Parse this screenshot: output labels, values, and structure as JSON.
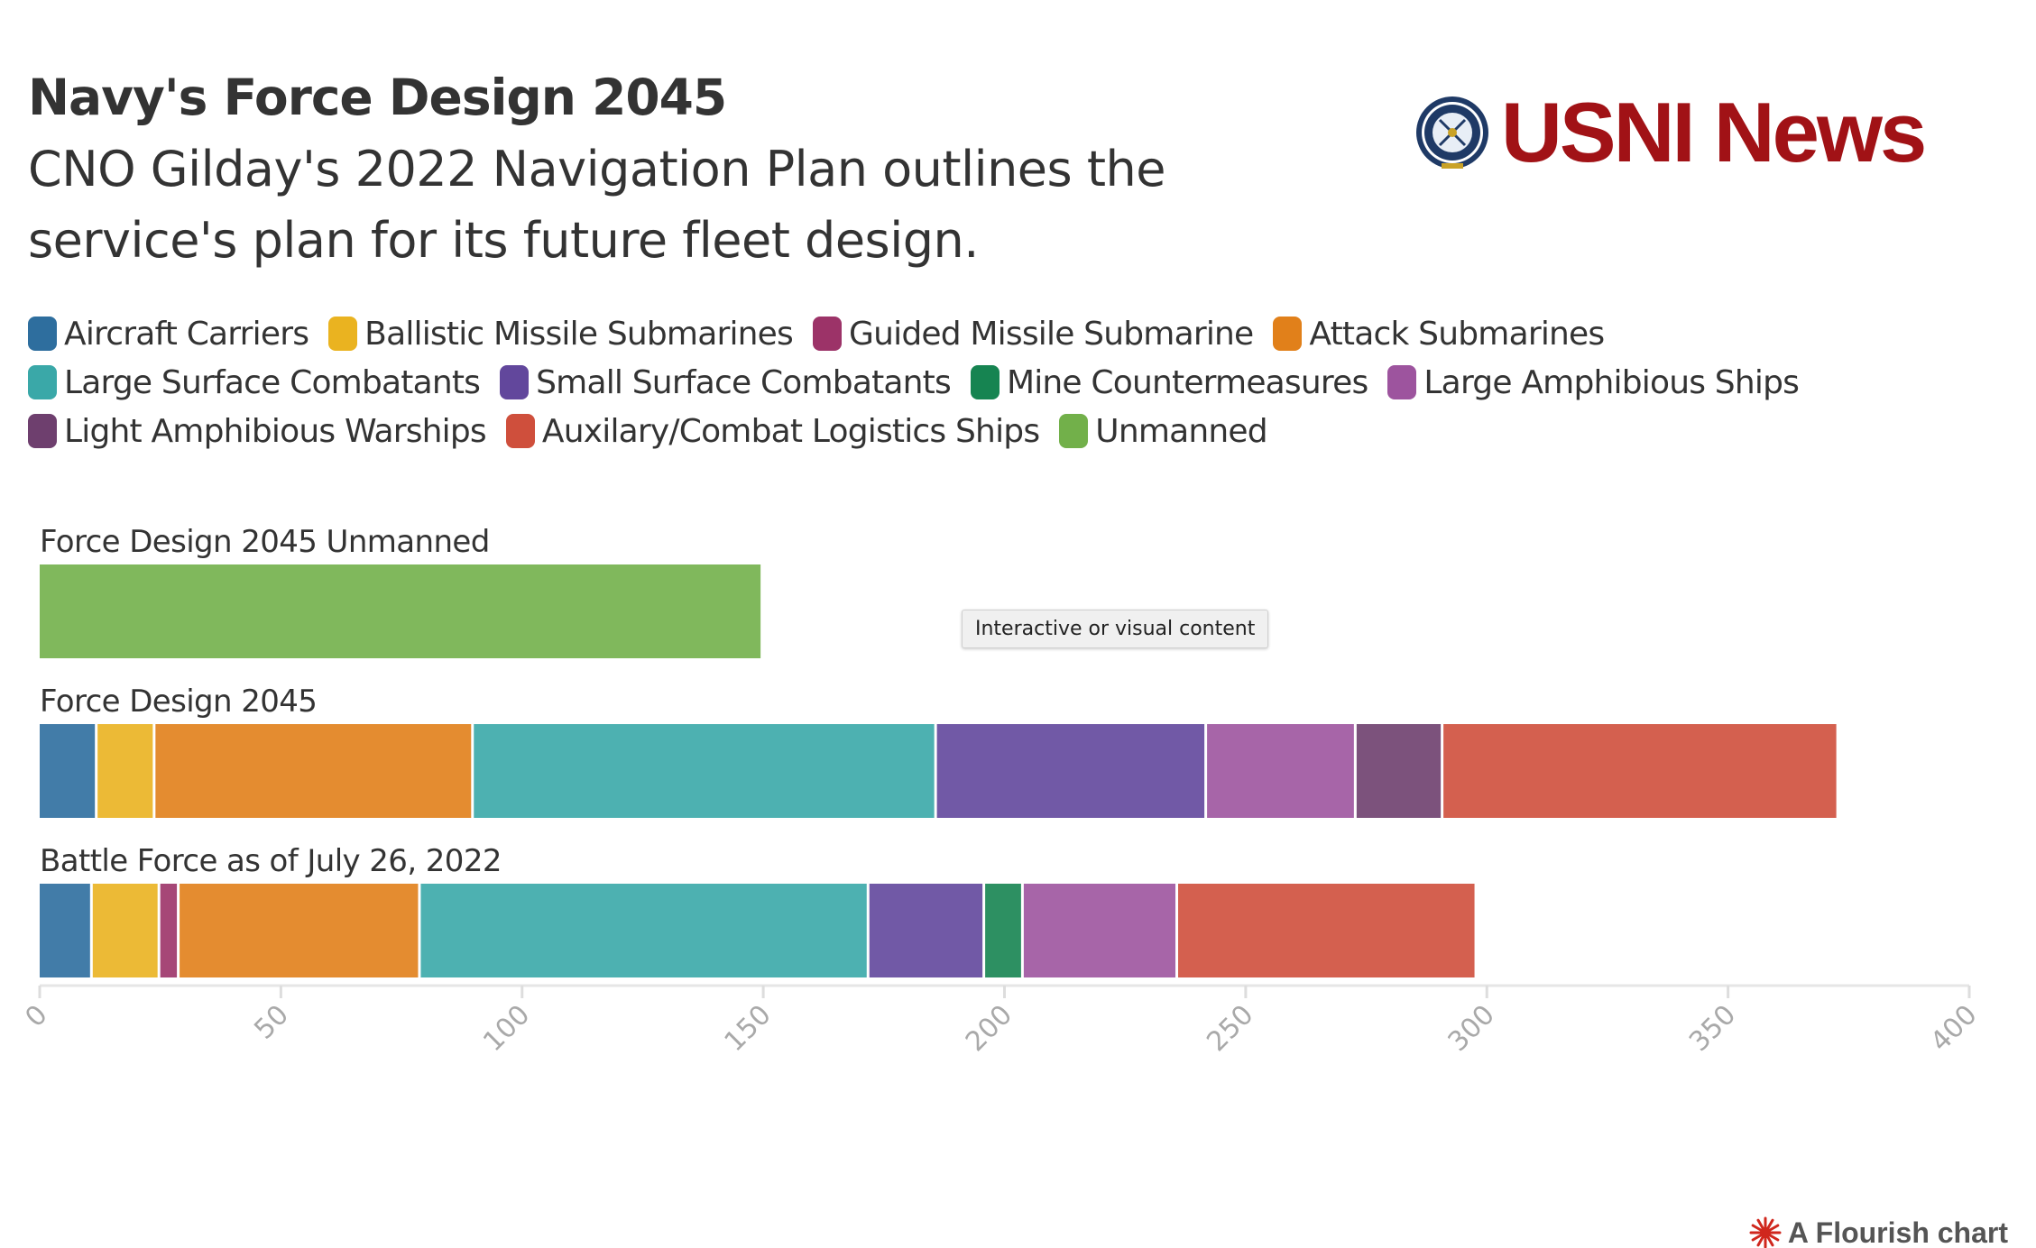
{
  "header": {
    "title": "Navy's Force Design 2045",
    "subtitle": "CNO Gilday's 2022 Navigation Plan outlines the service's plan for its future fleet design."
  },
  "logo": {
    "text": "USNI News",
    "seal_text": "U.S. NAVAL INSTITUTE",
    "brand_color": "#a11216"
  },
  "tooltip": {
    "text": "Interactive or visual content"
  },
  "credit": {
    "text": "A Flourish chart",
    "icon": "flourish-burst-icon"
  },
  "chart_data": {
    "type": "bar",
    "orientation": "horizontal",
    "stacked": true,
    "categories": [
      "Force Design 2045 Unmanned",
      "Force Design 2045",
      "Battle Force as of July 26, 2022"
    ],
    "series": [
      {
        "name": "Aircraft Carriers",
        "color": "#2e6e9e",
        "values": [
          0,
          12,
          11
        ]
      },
      {
        "name": "Ballistic Missile Submarines",
        "color": "#eab320",
        "values": [
          0,
          12,
          14
        ]
      },
      {
        "name": "Guided Missile Submarine",
        "color": "#9c3368",
        "values": [
          0,
          0,
          4
        ]
      },
      {
        "name": "Attack Submarines",
        "color": "#e1801a",
        "values": [
          0,
          66,
          50
        ]
      },
      {
        "name": "Large Surface Combatants",
        "color": "#3aa8a8",
        "values": [
          0,
          96,
          93
        ]
      },
      {
        "name": "Small Surface Combatants",
        "color": "#62479c",
        "values": [
          0,
          56,
          24
        ]
      },
      {
        "name": "Mine Countermeasures",
        "color": "#168451",
        "values": [
          0,
          0,
          8
        ]
      },
      {
        "name": "Large Amphibious Ships",
        "color": "#9d549e",
        "values": [
          0,
          31,
          32
        ]
      },
      {
        "name": "Light Amphibious Warships",
        "color": "#6e3f6e",
        "values": [
          0,
          18,
          0
        ]
      },
      {
        "name": "Auxilary/Combat Logistics Ships",
        "color": "#cf4f3c",
        "values": [
          0,
          82,
          62
        ]
      },
      {
        "name": "Unmanned",
        "color": "#72b04a",
        "values": [
          150,
          0,
          0
        ]
      }
    ],
    "xlim": [
      0,
      400
    ],
    "xticks": [
      "0",
      "50",
      "100",
      "150",
      "200",
      "250",
      "300",
      "350",
      "400"
    ],
    "legend_position": "top",
    "grid": false
  }
}
